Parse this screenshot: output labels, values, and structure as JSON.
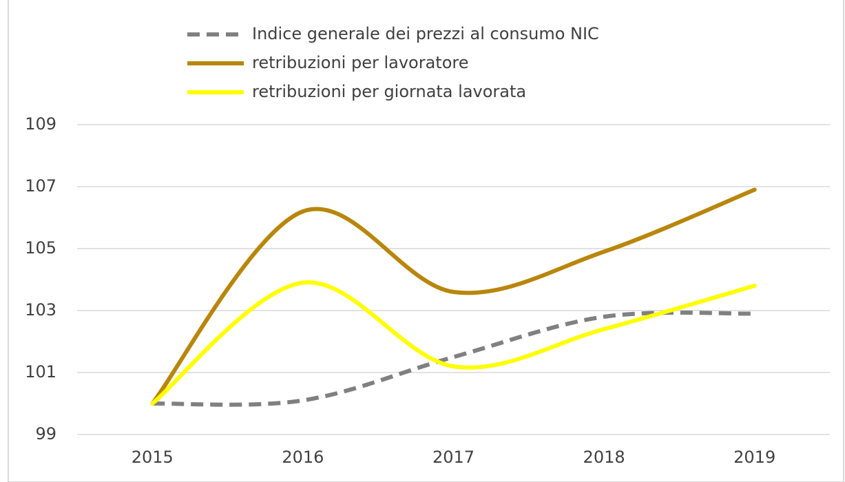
{
  "chart_data": {
    "type": "line",
    "categories": [
      "2015",
      "2016",
      "2017",
      "2018",
      "2019"
    ],
    "series": [
      {
        "name": "Indice generale dei prezzi al consumo NIC",
        "color": "#808080",
        "dash": true,
        "values": [
          100,
          100.1,
          101.5,
          102.8,
          102.9
        ]
      },
      {
        "name": "retribuzioni per lavoratore",
        "color": "#b8860b",
        "values": [
          100,
          106.2,
          103.6,
          104.9,
          106.9
        ]
      },
      {
        "name": "retribuzioni per giornata lavorata",
        "color": "#ffff00",
        "values": [
          100,
          103.9,
          101.2,
          102.4,
          103.8
        ]
      }
    ],
    "ylim": [
      99,
      109
    ],
    "yticks": [
      99,
      101,
      103,
      105,
      107,
      109
    ],
    "grid": true,
    "smooth": true,
    "legend": "top"
  }
}
